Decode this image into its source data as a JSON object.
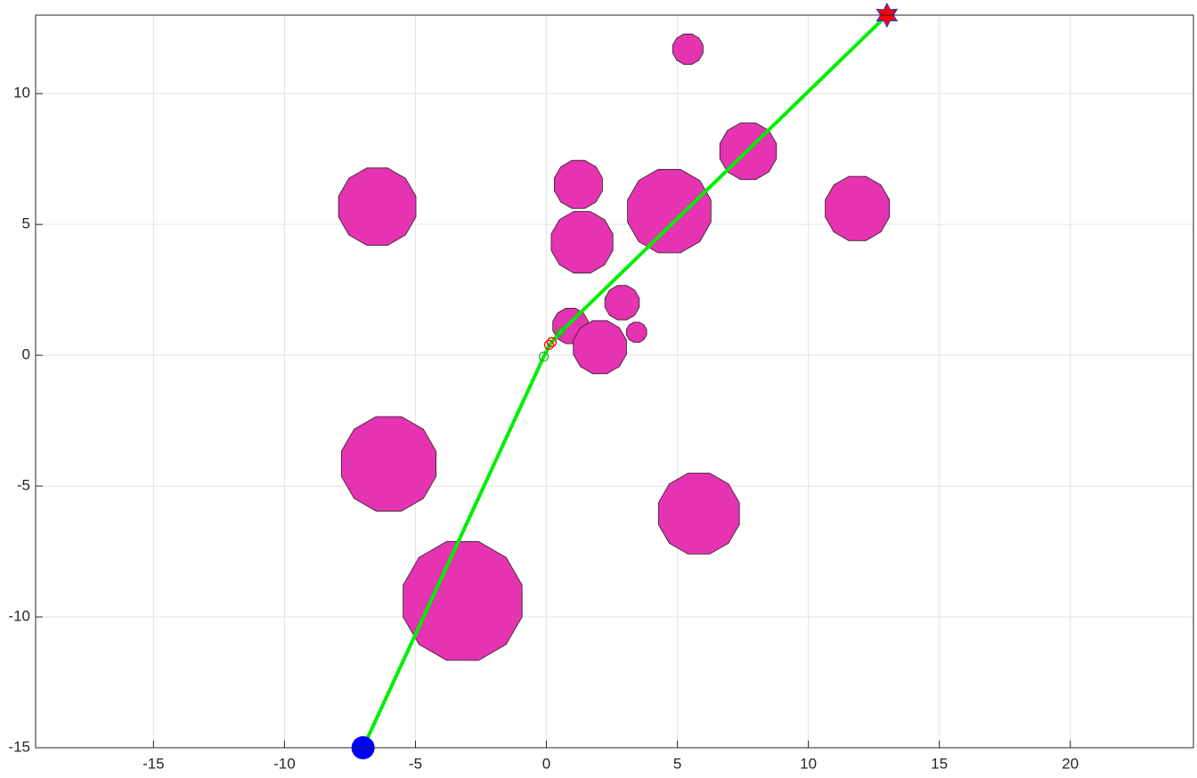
{
  "chart_data": {
    "type": "path",
    "xlim": [
      -19.5,
      24.7
    ],
    "ylim": [
      -15,
      13
    ],
    "xticks": [
      -15,
      -10,
      -5,
      0,
      5,
      10,
      15,
      20
    ],
    "yticks": [
      -15,
      -10,
      -5,
      0,
      5,
      10
    ],
    "grid": true,
    "obstacles": {
      "color": "#e533b1",
      "x": [
        5.4,
        7.7,
        -6.46,
        1.22,
        1.36,
        4.69,
        11.87,
        2.89,
        3.44,
        0.92,
        2.04,
        -6.02,
        5.82,
        -3.2
      ],
      "y": [
        11.7,
        7.8,
        5.68,
        6.53,
        4.32,
        5.51,
        5.61,
        2.01,
        0.88,
        1.12,
        0.31,
        -4.15,
        -6.05,
        -9.39
      ],
      "r": [
        0.6,
        1.12,
        1.53,
        0.95,
        1.22,
        1.65,
        1.27,
        0.68,
        0.4,
        0.7,
        1.05,
        1.87,
        1.6,
        2.35
      ]
    },
    "path": {
      "color": "#00ee00",
      "x": [
        -7,
        -0.1,
        0.15,
        0.55,
        13
      ],
      "y": [
        -15,
        -0.05,
        0.45,
        0.9,
        13
      ]
    },
    "waypoints": [
      {
        "color": "#22aa22",
        "x": [
          -0.1,
          0.55,
          0.2
        ],
        "y": [
          -0.05,
          0.9,
          0.5
        ]
      },
      {
        "color": "#ff0000",
        "x": [
          0.1,
          0.2
        ],
        "y": [
          0.4,
          0.5
        ]
      }
    ],
    "start": {
      "color": "#0000ff",
      "x": -7,
      "y": -15
    },
    "goal": {
      "color": "#ff0000",
      "edge": "#3333cc",
      "x": 13,
      "y": 13
    }
  }
}
